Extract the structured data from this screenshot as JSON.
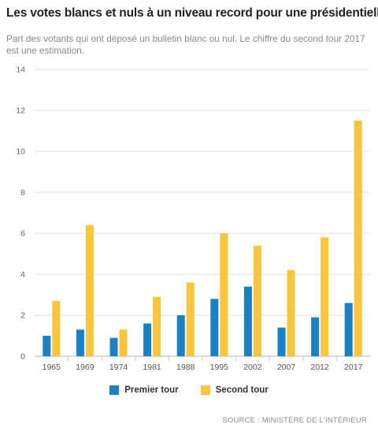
{
  "header": {
    "title": "Les votes blancs et nuls à un niveau record pour une présidentielle",
    "subtitle": "Part des votants qui ont déposé un bulletin blanc ou nul. Le chiffre du second tour 2017 est une estimation."
  },
  "footer": {
    "source": "SOURCE : MINISTÈRE DE L'INTÉRIEUR"
  },
  "chart_data": {
    "type": "bar",
    "title": "Les votes blancs et nuls à un niveau record pour une présidentielle",
    "subtitle": "Part des votants qui ont déposé un bulletin blanc ou nul. Le chiffre du second tour 2017 est une estimation.",
    "xlabel": "",
    "ylabel": "",
    "ylim": [
      0,
      14
    ],
    "yticks": [
      0,
      2,
      4,
      6,
      8,
      10,
      12,
      14
    ],
    "grid": true,
    "legend_position": "bottom",
    "categories": [
      "1965",
      "1969",
      "1974",
      "1981",
      "1988",
      "1995",
      "2002",
      "2007",
      "2012",
      "2017"
    ],
    "series": [
      {
        "name": "Premier tour",
        "color": "#1a82c4",
        "values": [
          1.0,
          1.3,
          0.9,
          1.6,
          2.0,
          2.8,
          3.4,
          1.4,
          1.9,
          2.6
        ]
      },
      {
        "name": "Second tour",
        "color": "#f9c53d",
        "values": [
          2.7,
          6.4,
          1.3,
          2.9,
          3.6,
          6.0,
          5.4,
          4.2,
          5.8,
          11.5
        ]
      }
    ]
  }
}
